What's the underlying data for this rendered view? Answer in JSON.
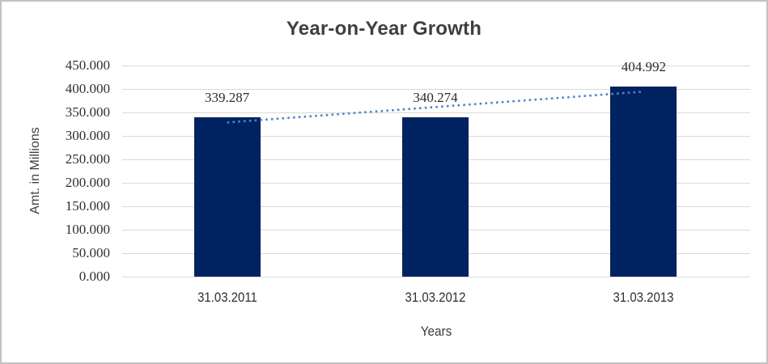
{
  "frame": {
    "background_color": "#ffffff",
    "border_color": "#c2c2c2"
  },
  "chart_data": {
    "type": "bar",
    "title": "Year-on-Year Growth",
    "xlabel": "Years",
    "ylabel": "Amt. in Millions",
    "categories": [
      "31.03.2011",
      "31.03.2012",
      "31.03.2013"
    ],
    "values": [
      339.287,
      340.274,
      404.992
    ],
    "data_labels": [
      "339.287",
      "340.274",
      "404.992"
    ],
    "ylim": [
      0,
      450
    ],
    "ytick_step": 50,
    "ytick_labels": [
      "0.000",
      "50.000",
      "100.000",
      "150.000",
      "200.000",
      "250.000",
      "300.000",
      "350.000",
      "400.000",
      "450.000"
    ],
    "grid": true,
    "legend": "none",
    "bar_color": "#012260",
    "gridline_color": "#d9d9d9",
    "trendline": {
      "type": "linear",
      "style": "dotted",
      "color": "#4e87c6"
    }
  }
}
